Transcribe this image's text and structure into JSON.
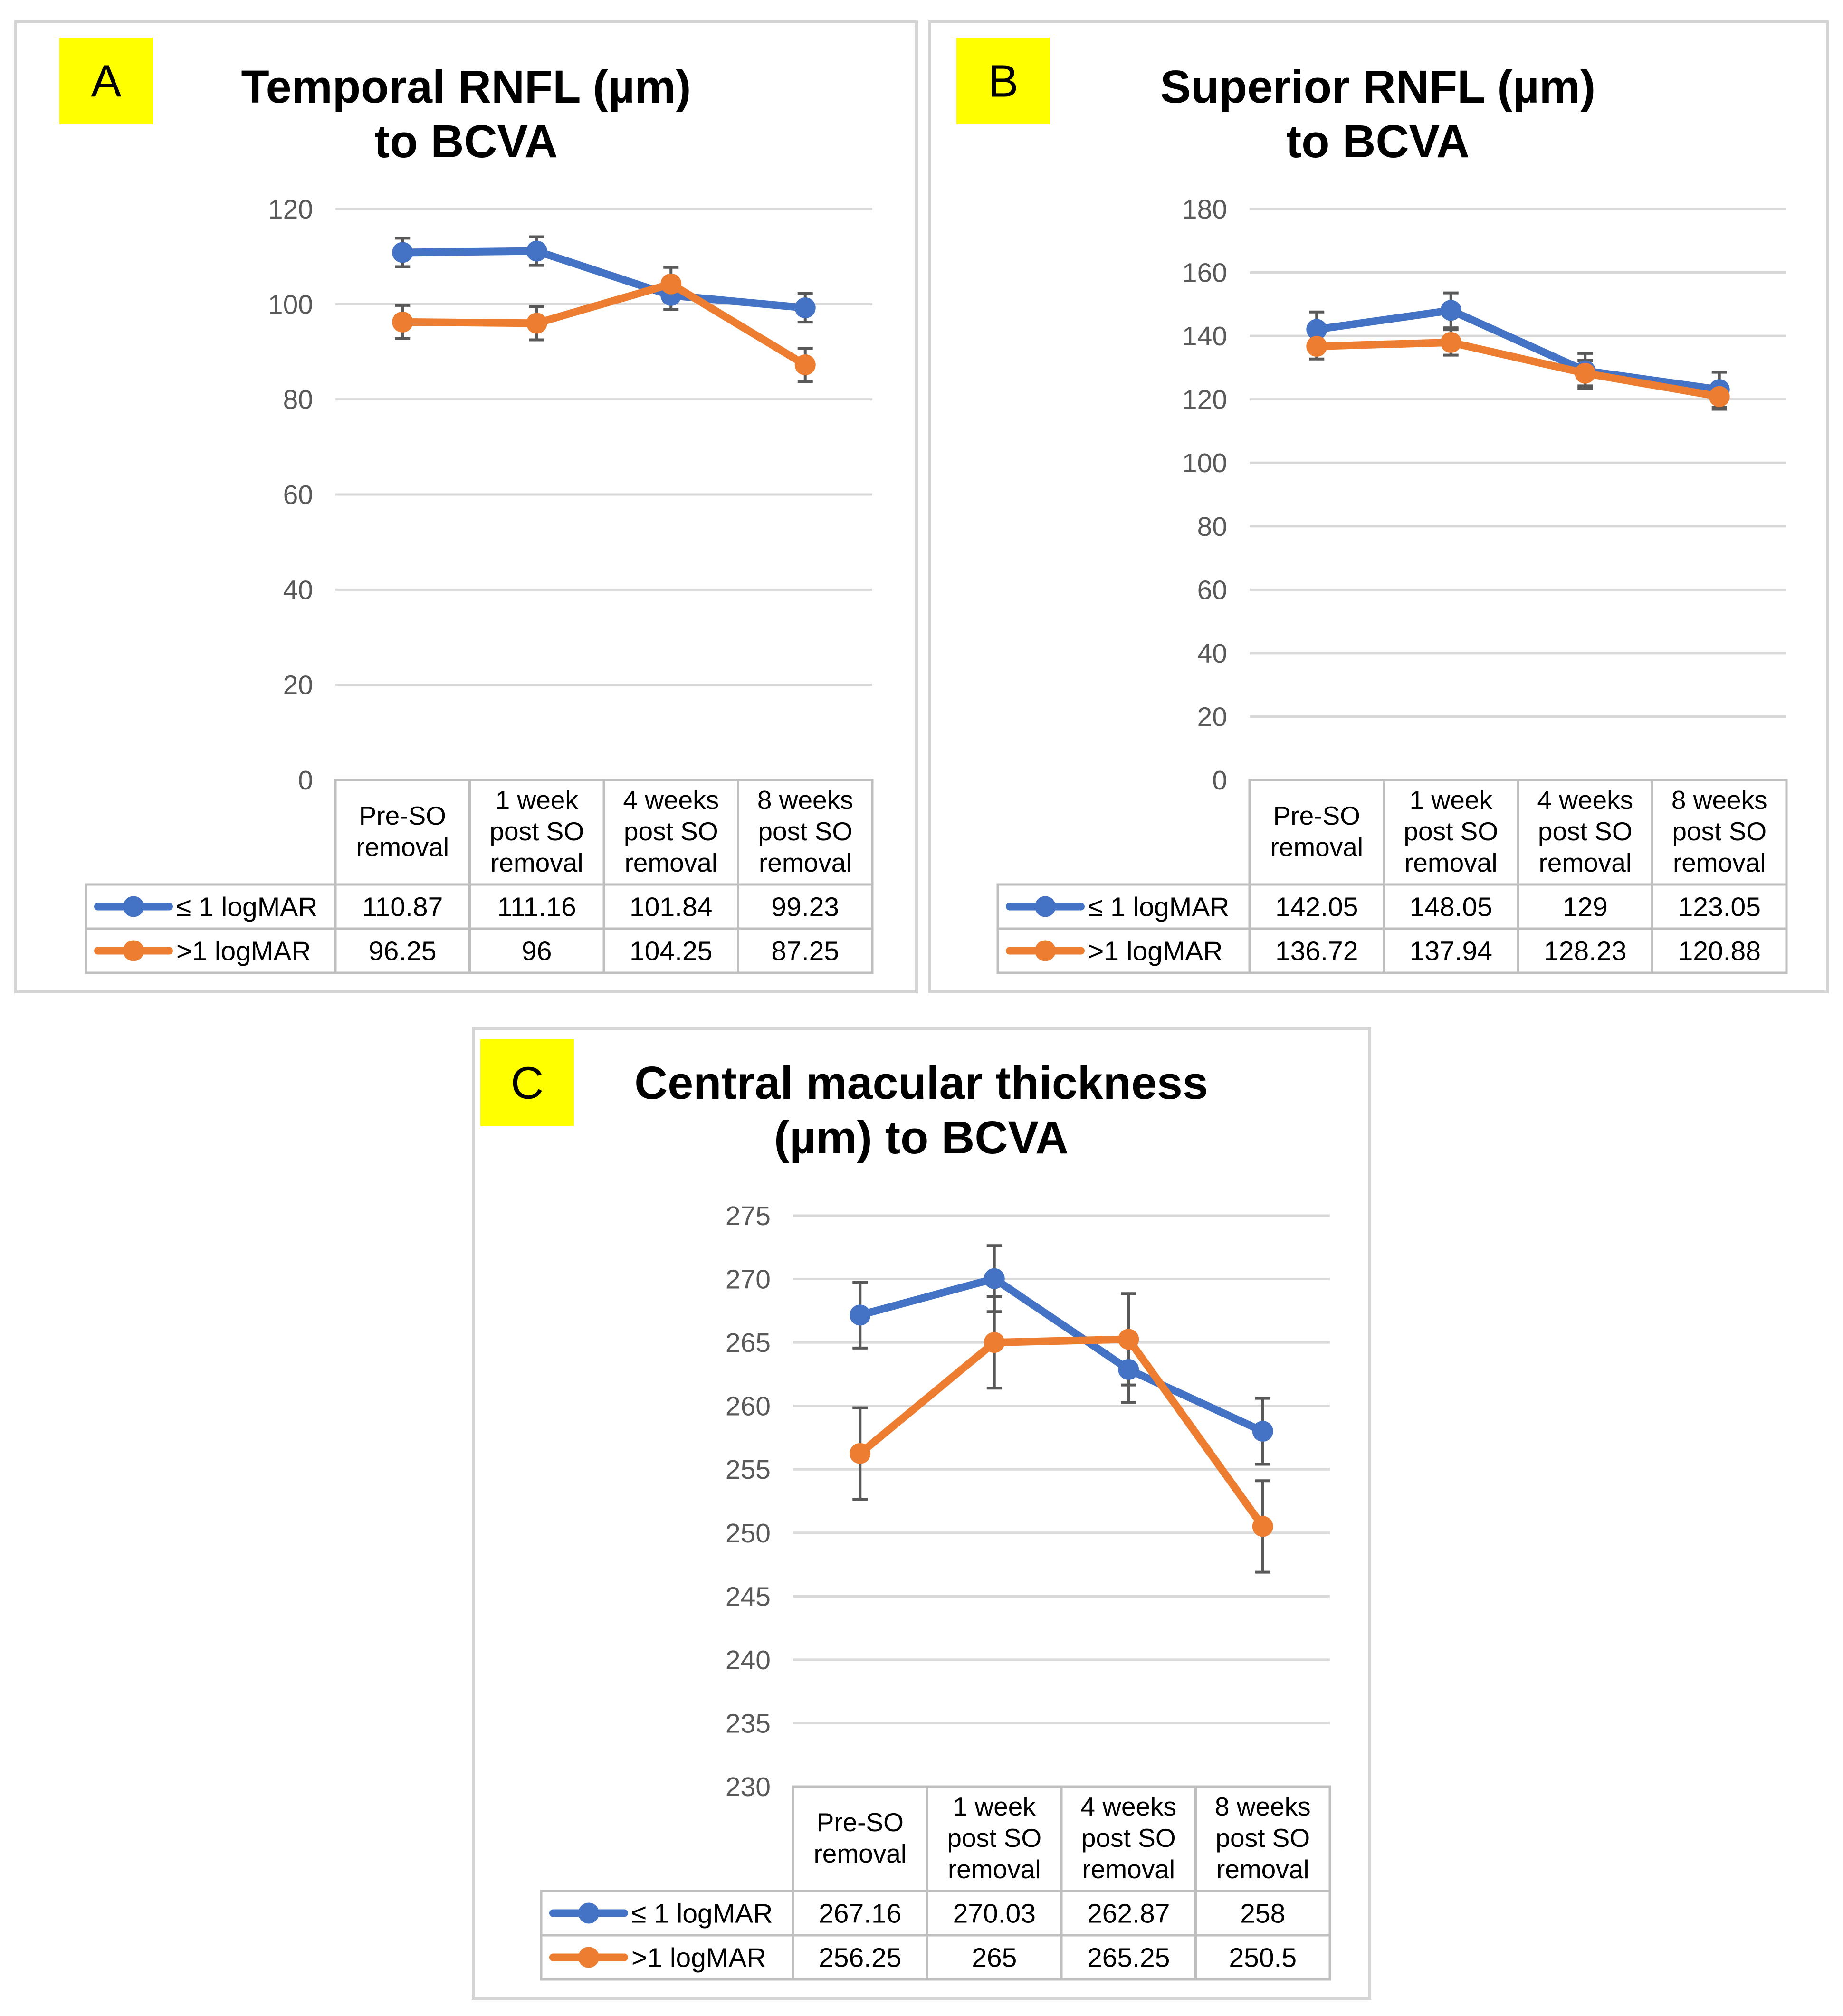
{
  "chart_data": [
    {
      "type": "line",
      "badge": "A",
      "title": [
        "Temporal RNFL (µm)",
        "to BCVA"
      ],
      "categories": [
        [
          "Pre-SO",
          "removal"
        ],
        [
          "1 week",
          "post SO",
          "removal"
        ],
        [
          "4 weeks",
          "post SO",
          "removal"
        ],
        [
          "8 weeks",
          "post SO",
          "removal"
        ]
      ],
      "ylim": [
        0,
        120
      ],
      "yticks": [
        0,
        20,
        40,
        60,
        80,
        100,
        120
      ],
      "series": [
        {
          "name": "≤ 1 logMAR",
          "color": "#4472c4",
          "values": [
            110.87,
            111.16,
            101.84,
            99.23
          ],
          "labels": [
            "110.87",
            "111.16",
            "101.84",
            "99.23"
          ],
          "errors": [
            3,
            3,
            3,
            3
          ]
        },
        {
          "name": ">1 logMAR",
          "color": "#ed7d31",
          "values": [
            96.25,
            96,
            104.25,
            87.25
          ],
          "labels": [
            "96.25",
            "96",
            "104.25",
            "87.25"
          ],
          "errors": [
            3.5,
            3.5,
            3.5,
            3.5
          ]
        }
      ]
    },
    {
      "type": "line",
      "badge": "B",
      "title": [
        "Superior RNFL (µm)",
        "to BCVA"
      ],
      "categories": [
        [
          "Pre-SO",
          "removal"
        ],
        [
          "1 week",
          "post SO",
          "removal"
        ],
        [
          "4 weeks",
          "post SO",
          "removal"
        ],
        [
          "8 weeks",
          "post SO",
          "removal"
        ]
      ],
      "ylim": [
        0,
        180
      ],
      "yticks": [
        0,
        20,
        40,
        60,
        80,
        100,
        120,
        140,
        160,
        180
      ],
      "series": [
        {
          "name": "≤ 1 logMAR",
          "color": "#4472c4",
          "values": [
            142.05,
            148.05,
            129,
            123.05
          ],
          "labels": [
            "142.05",
            "148.05",
            "129",
            "123.05"
          ],
          "errors": [
            5.5,
            5.5,
            5.5,
            5.5
          ]
        },
        {
          "name": ">1 logMAR",
          "color": "#ed7d31",
          "values": [
            136.72,
            137.94,
            128.23,
            120.88
          ],
          "labels": [
            "136.72",
            "137.94",
            "128.23",
            "120.88"
          ],
          "errors": [
            4,
            4,
            4,
            4
          ]
        }
      ]
    },
    {
      "type": "line",
      "badge": "C",
      "title": [
        "Central macular thickness",
        "(µm) to BCVA"
      ],
      "categories": [
        [
          "Pre-SO",
          "removal"
        ],
        [
          "1 week",
          "post SO",
          "removal"
        ],
        [
          "4 weeks",
          "post SO",
          "removal"
        ],
        [
          "8 weeks",
          "post SO",
          "removal"
        ]
      ],
      "ylim": [
        230,
        275
      ],
      "yticks": [
        230,
        235,
        240,
        245,
        250,
        255,
        260,
        265,
        270,
        275
      ],
      "series": [
        {
          "name": "≤ 1 logMAR",
          "color": "#4472c4",
          "values": [
            267.16,
            270.03,
            262.87,
            258
          ],
          "labels": [
            "267.16",
            "270.03",
            "262.87",
            "258"
          ],
          "errors": [
            2.6,
            2.6,
            2.6,
            2.6
          ]
        },
        {
          "name": ">1 logMAR",
          "color": "#ed7d31",
          "values": [
            256.25,
            265,
            265.25,
            250.5
          ],
          "labels": [
            "256.25",
            "265",
            "265.25",
            "250.5"
          ],
          "errors": [
            3.6,
            3.6,
            3.6,
            3.6
          ]
        }
      ]
    }
  ]
}
